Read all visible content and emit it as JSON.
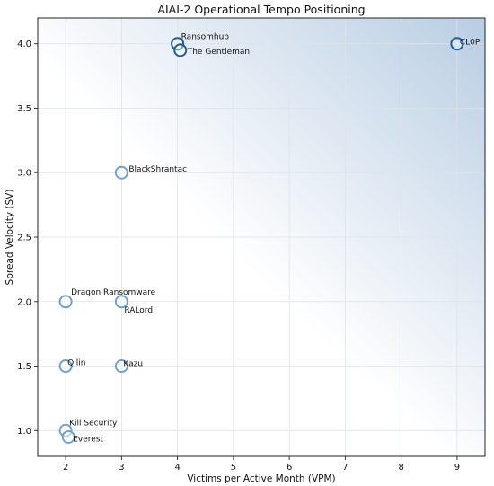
{
  "chart_data": {
    "type": "scatter",
    "title": "AIAI-2 Operational Tempo Positioning",
    "xlabel": "Victims per Active Month (VPM)",
    "ylabel": "Spread Velocity (SV)",
    "xlim": [
      1.5,
      9.5
    ],
    "ylim": [
      0.8,
      4.2
    ],
    "xticks": [
      2,
      3,
      4,
      5,
      6,
      7,
      8,
      9
    ],
    "yticks": [
      1.0,
      1.5,
      2.0,
      2.5,
      3.0,
      3.5,
      4.0
    ],
    "grid": true,
    "background": "gradient white (lower-left) to light blue (upper-right)",
    "points": [
      {
        "label": "CL0P",
        "x": 9.0,
        "y": 4.0,
        "emphasis": "dark"
      },
      {
        "label": "Ransomhub",
        "x": 4.0,
        "y": 4.0,
        "emphasis": "dark"
      },
      {
        "label": "The Gentleman",
        "x": 4.05,
        "y": 3.95,
        "emphasis": "dark"
      },
      {
        "label": "BlackShrantac",
        "x": 3.0,
        "y": 3.0,
        "emphasis": "light"
      },
      {
        "label": "Dragon Ransomware",
        "x": 2.0,
        "y": 2.0,
        "emphasis": "light"
      },
      {
        "label": "RALord",
        "x": 3.0,
        "y": 2.0,
        "emphasis": "light"
      },
      {
        "label": "Qilin",
        "x": 2.0,
        "y": 1.5,
        "emphasis": "light"
      },
      {
        "label": "Kazu",
        "x": 3.0,
        "y": 1.5,
        "emphasis": "light"
      },
      {
        "label": "Kill Security",
        "x": 2.0,
        "y": 1.0,
        "emphasis": "light"
      },
      {
        "label": "Everest",
        "x": 2.05,
        "y": 0.95,
        "emphasis": "light"
      }
    ],
    "colors": {
      "dark_edge": "#1f5f99",
      "light_edge": "#6fa3cf",
      "gradient_start": "#ffffff",
      "gradient_end": "#b8cde3",
      "grid": "#dde3ea",
      "axis": "#222222"
    }
  }
}
